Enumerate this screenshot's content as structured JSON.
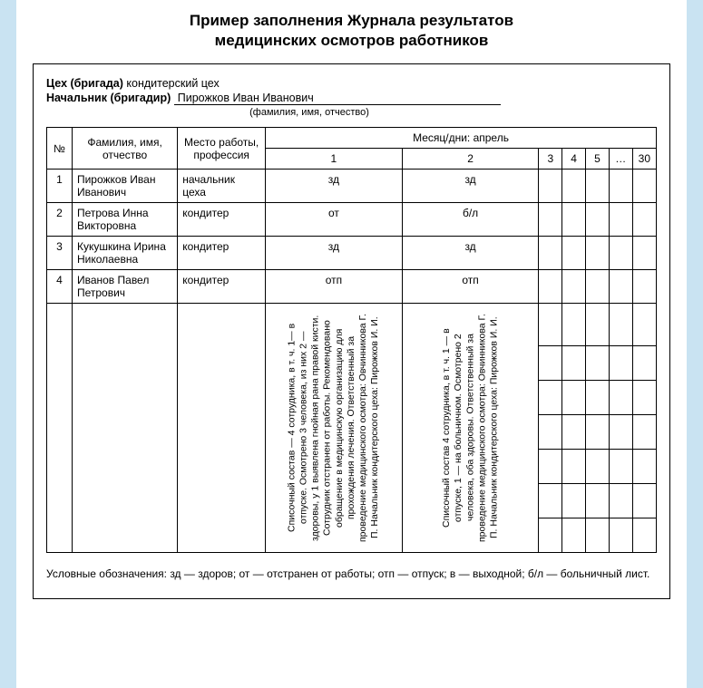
{
  "title_line1": "Пример заполнения Журнала результатов",
  "title_line2": "медицинских осмотров работников",
  "header": {
    "dept_label": "Цех (бригада)",
    "dept_value": "кондитерский цех",
    "chief_label": "Начальник (бригадир)",
    "chief_value": "Пирожков Иван Иванович",
    "chief_hint": "(фамилия, имя, отчество)"
  },
  "table": {
    "col_num": "№",
    "col_fio": "Фамилия, имя, отчество",
    "col_job": "Место работы, профессия",
    "month_header": "Месяц/дни: апрель",
    "day_cols": [
      "1",
      "2",
      "3",
      "4",
      "5",
      "…",
      "30"
    ],
    "rows": [
      {
        "n": "1",
        "fio": "Пирожков Иван Иванович",
        "job": "начальник цеха",
        "d1": "зд",
        "d2": "зд"
      },
      {
        "n": "2",
        "fio": "Петрова Инна Викторовна",
        "job": "кондитер",
        "d1": "от",
        "d2": "б/л"
      },
      {
        "n": "3",
        "fio": "Кукушкина Ири­на Николаевна",
        "job": "кондитер",
        "d1": "зд",
        "d2": "зд"
      },
      {
        "n": "4",
        "fio": "Иванов Павел Петрович",
        "job": "кондитер",
        "d1": "отп",
        "d2": "отп"
      }
    ],
    "summary_d1": "Списочный состав — 4 сотрудника, в т. ч. 1— в отпуске. Осмотрено 3 человека, из них 2 — здоровы, у 1 выявлена гнойная рана правой кисти. Сотрудник отстранен от работы. Рекомендовано обращение в медицинскую организацию для прохождения лечения. Ответственный за проведение медицинского осмотра: Овчинникова Г. П. Начальник кондитерского цеха: Пирожков И. И.",
    "summary_d2": "Списочный состав 4 сотрудника, в т. ч. 1 — в отпуске, 1 — на больничном. Осмотрено 2 человека, оба здоровы. Ответственный за проведение медицинского осмотра: Овчинникова Г. П. Начальник кондитерского цеха: Пирожков И. И."
  },
  "legend": "Условные обозначения: зд — здоров; от — отстранен от работы; отп — отпуск; в — выходной; б/л — больничный лист."
}
